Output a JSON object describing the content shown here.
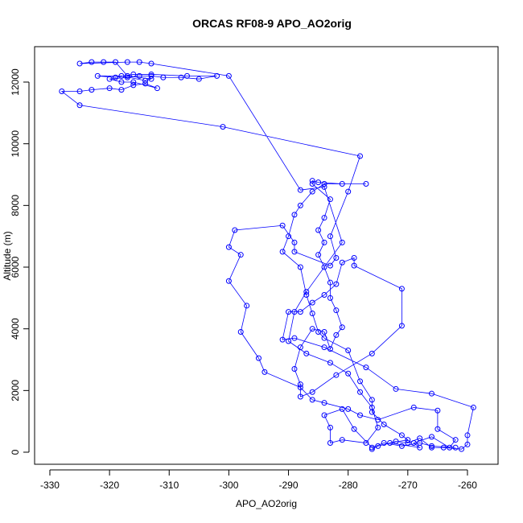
{
  "chart_data": {
    "type": "line",
    "title": "ORCAS RF08-9 APO_AO2orig",
    "x_label": "APO_AO2orig",
    "y_label": "Altitude (m)",
    "color": "#0000ff",
    "markers": "open-circle",
    "xlim": [
      -332.56,
      -254.87
    ],
    "ylim": [
      -391,
      13148
    ],
    "xticks": [
      -330,
      -320,
      -310,
      -300,
      -290,
      -280,
      -270,
      -260
    ],
    "yticks": [
      0,
      2000,
      4000,
      6000,
      8000,
      10000,
      12000
    ],
    "x": [
      -276,
      -275,
      -272,
      -270,
      -268,
      -266,
      -264,
      -261,
      -260,
      -260,
      -259,
      -266,
      -272,
      -277,
      -284,
      -289,
      -291,
      -290,
      -288,
      -286,
      -284,
      -282,
      -281,
      -279,
      -279,
      -271,
      -271,
      -276,
      -282,
      -286,
      -288,
      -288,
      -289,
      -288,
      -286,
      -284,
      -283,
      -282,
      -281,
      -282,
      -283,
      -283,
      -284,
      -285,
      -284,
      -285,
      -284,
      -283,
      -286,
      -286,
      -285,
      -281,
      -277,
      -284,
      -286,
      -288,
      -289,
      -290,
      -291,
      -288,
      -287,
      -286,
      -285,
      -284,
      -280,
      -278,
      -276,
      -276,
      -274,
      -271,
      -270,
      -273,
      -268,
      -269,
      -266,
      -263,
      -262,
      -265,
      -265,
      -269,
      -275,
      -278,
      -280,
      -284,
      -286,
      -288,
      -294,
      -295,
      -298,
      -297,
      -300,
      -298,
      -300,
      -299,
      -291,
      -289,
      -289,
      -283,
      -282,
      -283,
      -280,
      -278,
      -301,
      -325,
      -328,
      -325,
      -323,
      -320,
      -318,
      -316,
      -314,
      -312,
      -316,
      -318,
      -320,
      -317,
      -315,
      -313,
      -311,
      -308,
      -305,
      -302,
      -307,
      -313,
      -316,
      -319,
      -322,
      -318,
      -314,
      -313,
      -317,
      -319,
      -321,
      -323,
      -325,
      -317,
      -315,
      -313,
      -300,
      -288,
      -284,
      -281,
      -287,
      -289,
      -290,
      -287,
      -283,
      -280,
      -278,
      -276,
      -275,
      -277,
      -281,
      -283,
      -283,
      -284,
      -281,
      -279,
      -276,
      -274,
      -271,
      -268,
      -266,
      -262
    ],
    "values": [
      100,
      200,
      350,
      300,
      450,
      150,
      150,
      100,
      250,
      550,
      1450,
      1900,
      2050,
      2750,
      3400,
      3700,
      3650,
      4550,
      4550,
      4850,
      5100,
      5450,
      6150,
      6300,
      6050,
      5300,
      4100,
      3200,
      2500,
      1950,
      1800,
      2200,
      2700,
      3400,
      4000,
      3900,
      3350,
      3800,
      4050,
      4600,
      5000,
      5500,
      6000,
      6400,
      6800,
      7200,
      7600,
      8200,
      8700,
      8800,
      8750,
      8700,
      8700,
      8700,
      8450,
      8000,
      7700,
      7000,
      6500,
      6000,
      5100,
      4500,
      3900,
      3700,
      3300,
      2300,
      1700,
      1300,
      900,
      550,
      400,
      300,
      150,
      300,
      500,
      150,
      400,
      750,
      1350,
      1450,
      1050,
      1200,
      1400,
      1600,
      1700,
      2100,
      2600,
      3050,
      3900,
      4750,
      5550,
      6400,
      6650,
      7200,
      7350,
      6800,
      6500,
      6050,
      6300,
      7000,
      8450,
      9600,
      10550,
      11250,
      11700,
      11700,
      11750,
      11800,
      11750,
      11900,
      11950,
      11800,
      12000,
      12000,
      12100,
      12150,
      12200,
      12200,
      12150,
      12150,
      12100,
      12200,
      12200,
      12250,
      12250,
      12150,
      12200,
      12200,
      12050,
      12100,
      12200,
      12650,
      12650,
      12650,
      12600,
      12650,
      12650,
      12600,
      12200,
      8500,
      8600,
      6800,
      5200,
      4550,
      3600,
      3200,
      2900,
      2550,
      1950,
      1450,
      800,
      300,
      400,
      300,
      800,
      1200,
      1400,
      750,
      150,
      300,
      200,
      300,
      200,
      150
    ]
  }
}
